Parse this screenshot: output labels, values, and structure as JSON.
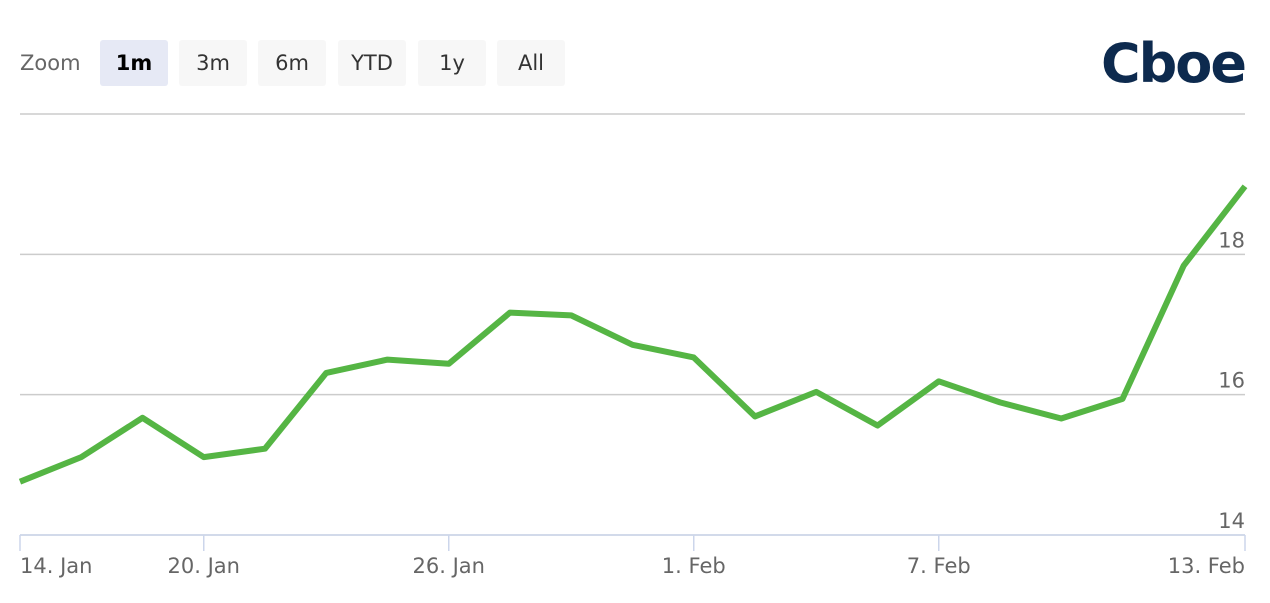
{
  "zoom": {
    "label": "Zoom",
    "buttons": [
      "1m",
      "3m",
      "6m",
      "YTD",
      "1y",
      "All"
    ],
    "active": 0
  },
  "logo": "Cboe",
  "chart_data": {
    "type": "line",
    "categories": [
      "14. Jan",
      null,
      null,
      "20. Jan",
      null,
      null,
      null,
      "26. Jan",
      null,
      null,
      null,
      "1. Feb",
      null,
      null,
      null,
      "7. Feb",
      null,
      null,
      null,
      null,
      "13. Feb"
    ],
    "series": [
      {
        "color": "#55b544",
        "values": [
          14.76,
          15.11,
          15.67,
          15.11,
          15.23,
          16.31,
          16.5,
          16.44,
          17.17,
          17.13,
          16.71,
          16.53,
          15.69,
          16.04,
          15.56,
          16.19,
          15.89,
          15.66,
          15.94,
          17.84,
          18.97
        ]
      }
    ],
    "ylim": [
      14,
      20
    ],
    "yticks": [
      14,
      16,
      18
    ],
    "grid": true
  }
}
